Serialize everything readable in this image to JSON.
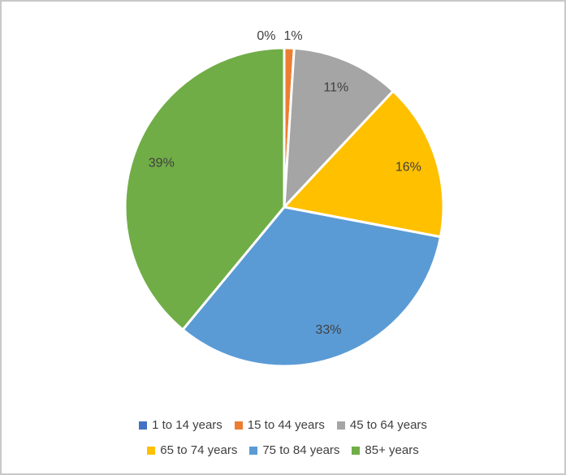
{
  "frame": {
    "background": "#ffffff",
    "border_color": "#c9c9c9"
  },
  "chart_data": {
    "type": "pie",
    "title": "",
    "categories": [
      "1 to 14 years",
      "15 to 44 years",
      "45 to 64 years",
      "65 to 74 years",
      "75 to 84 years",
      "85+ years"
    ],
    "values": [
      0,
      1,
      11,
      16,
      33,
      39
    ],
    "labels": [
      "0%",
      "1%",
      "11%",
      "16%",
      "33%",
      "39%"
    ],
    "colors": [
      "#4472C4",
      "#ED7D31",
      "#A5A5A5",
      "#FFC000",
      "#5B9BD5",
      "#70AD47"
    ],
    "unit": "percent",
    "start_angle_deg": 0,
    "direction": "clockwise",
    "slice_border_color": "#FFFFFF",
    "label_color": "#404040",
    "legend_position": "bottom",
    "legend_text_color": "#3f3f3f",
    "legend_rows": [
      [
        0,
        1,
        2
      ],
      [
        3,
        4,
        5
      ]
    ]
  }
}
